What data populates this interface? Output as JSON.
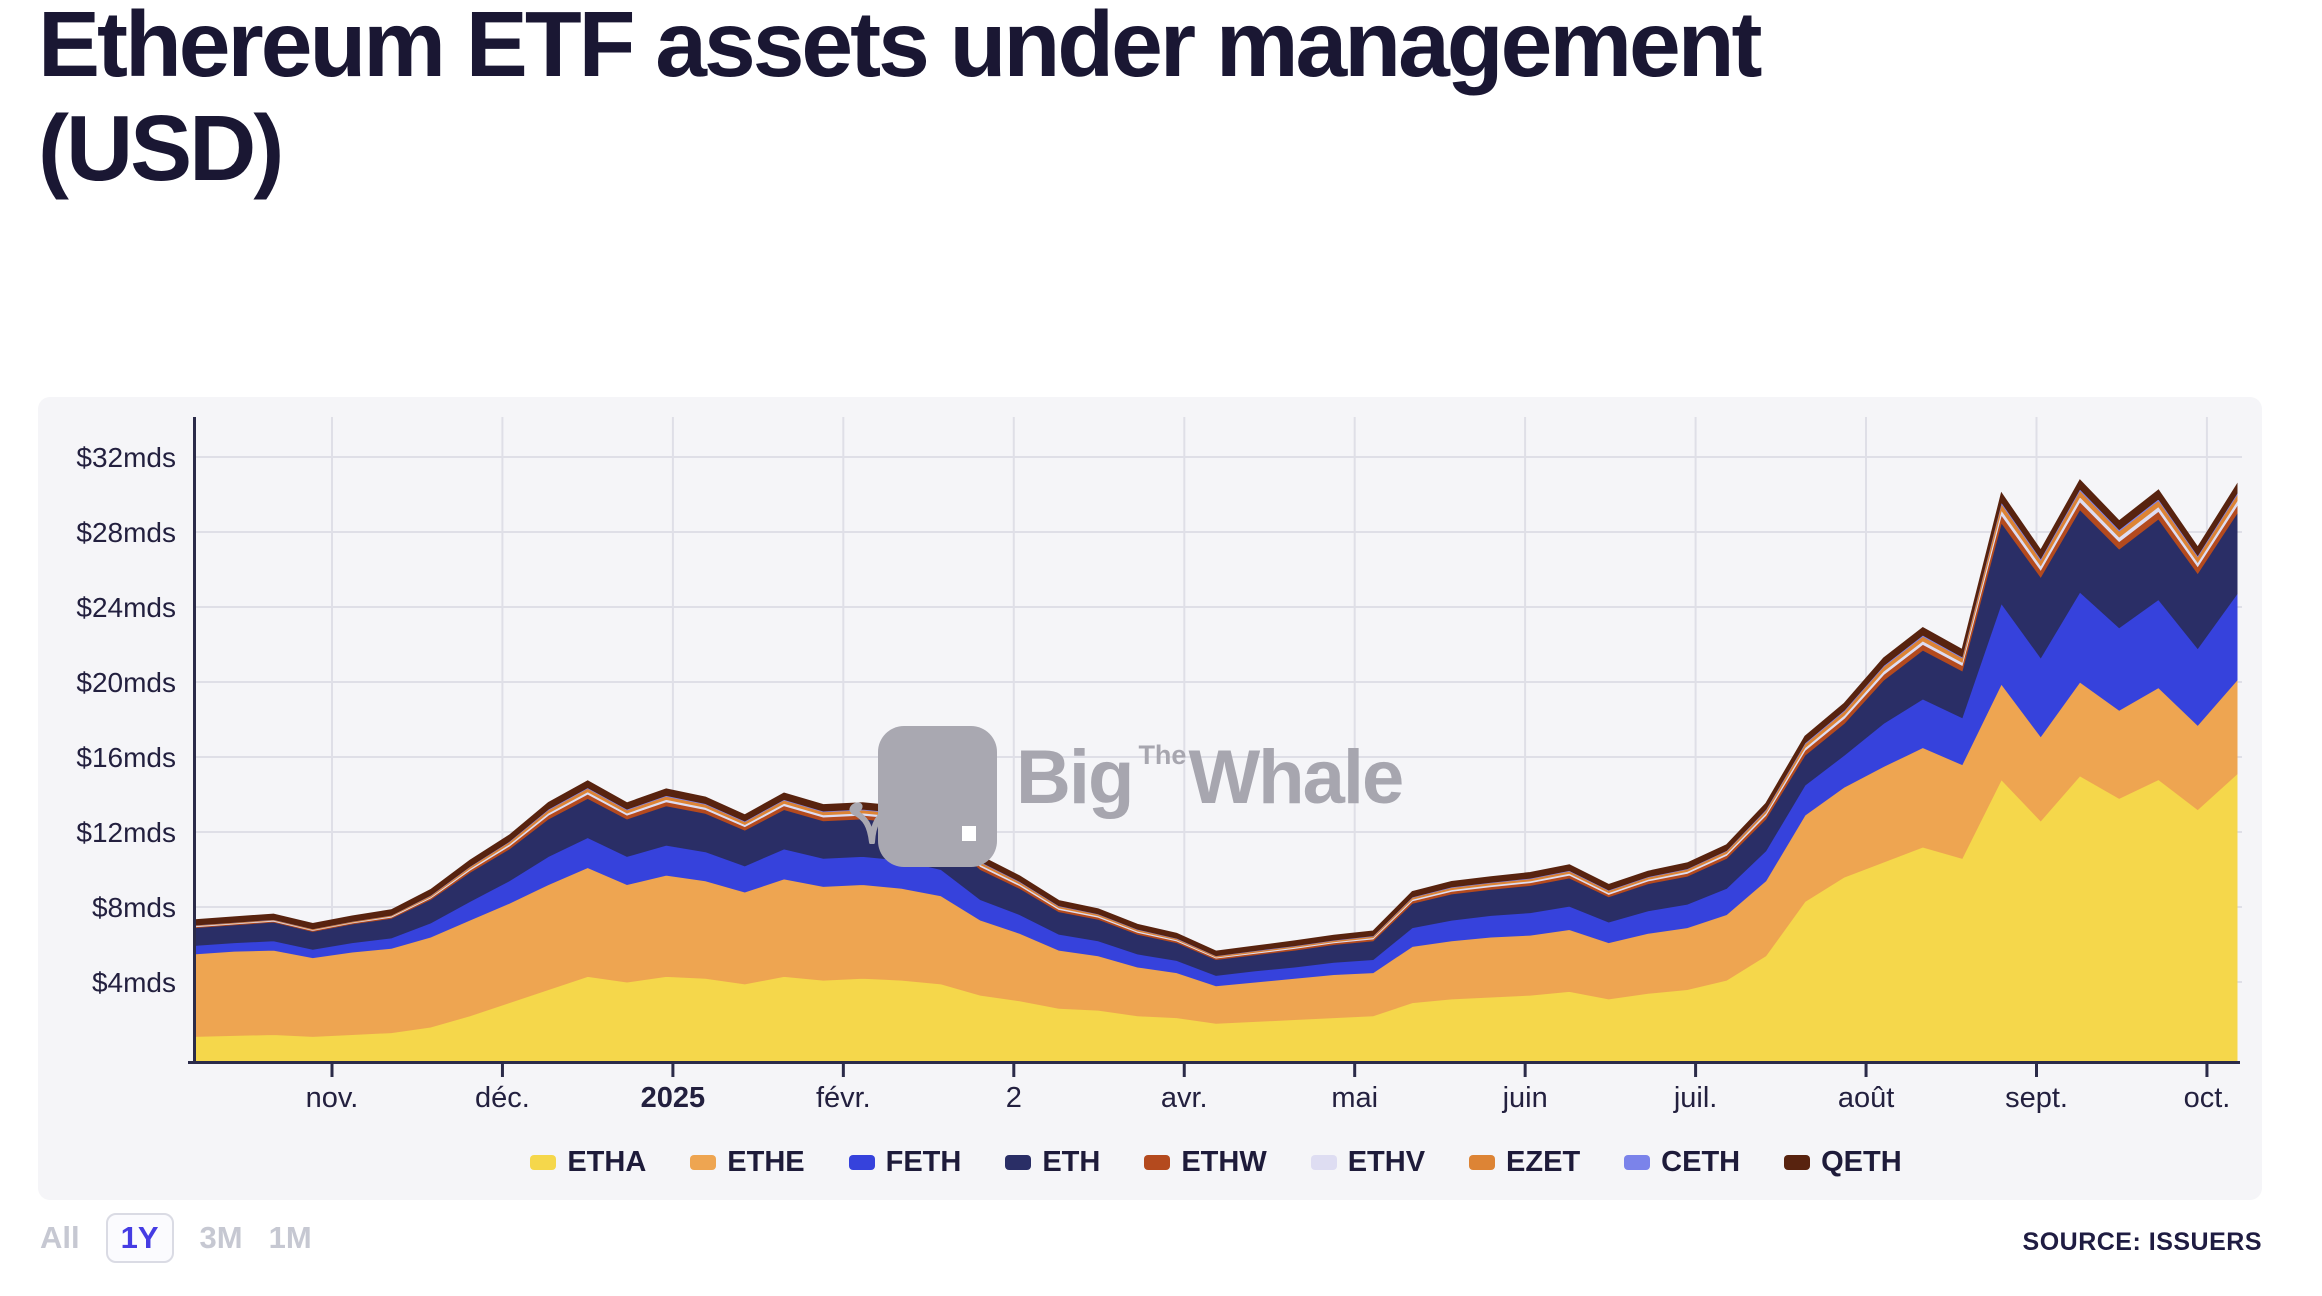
{
  "page": {
    "title_line1": "Ethereum ETF assets under management",
    "title_line2": "(USD)"
  },
  "watermark": {
    "the": "The",
    "big": "Big",
    "whale": "Whale",
    "color": "#A9A8B1"
  },
  "controls": {
    "options": [
      {
        "label": "All",
        "active": false
      },
      {
        "label": "1Y",
        "active": true
      },
      {
        "label": "3M",
        "active": false
      },
      {
        "label": "1M",
        "active": false
      }
    ]
  },
  "source": "SOURCE: ISSUERS",
  "colors": {
    "panel": "#F5F5F8",
    "gridline": "#DFDFE7",
    "axis": "#2B2B49",
    "label": "#23203F",
    "accent_blue": "#453CE3",
    "muted_gray": "#C6C8D2"
  },
  "chart_data": {
    "type": "area",
    "stacked": true,
    "title": "Ethereum ETF assets under management (USD)",
    "xlabel": "",
    "ylabel": "",
    "unit": "mds USD",
    "grid": true,
    "legend_position": "bottom",
    "ylim": [
      0,
      33.5
    ],
    "x": [
      "2024-10-08",
      "2024-10-15",
      "2024-10-22",
      "2024-10-29",
      "2024-11-05",
      "2024-11-12",
      "2024-11-19",
      "2024-11-26",
      "2024-12-03",
      "2024-12-10",
      "2024-12-17",
      "2024-12-24",
      "2024-12-31",
      "2025-01-07",
      "2025-01-14",
      "2025-01-21",
      "2025-01-28",
      "2025-02-04",
      "2025-02-11",
      "2025-02-18",
      "2025-02-25",
      "2025-03-04",
      "2025-03-11",
      "2025-03-18",
      "2025-03-25",
      "2025-04-01",
      "2025-04-08",
      "2025-04-15",
      "2025-04-22",
      "2025-04-29",
      "2025-05-06",
      "2025-05-13",
      "2025-05-20",
      "2025-05-27",
      "2025-06-03",
      "2025-06-10",
      "2025-06-17",
      "2025-06-24",
      "2025-07-01",
      "2025-07-08",
      "2025-07-15",
      "2025-07-22",
      "2025-07-29",
      "2025-08-05",
      "2025-08-12",
      "2025-08-19",
      "2025-08-26",
      "2025-09-02",
      "2025-09-09",
      "2025-09-16",
      "2025-09-23",
      "2025-09-30",
      "2025-10-07"
    ],
    "x_ticks": [
      {
        "label": "nov.",
        "bold": false
      },
      {
        "label": "déc.",
        "bold": false
      },
      {
        "label": "2025",
        "bold": true
      },
      {
        "label": "févr.",
        "bold": false
      },
      {
        "label": "2",
        "bold": false
      },
      {
        "label": "avr.",
        "bold": false
      },
      {
        "label": "mai",
        "bold": false
      },
      {
        "label": "juin",
        "bold": false
      },
      {
        "label": "juil.",
        "bold": false
      },
      {
        "label": "août",
        "bold": false
      },
      {
        "label": "sept.",
        "bold": false
      },
      {
        "label": "oct.",
        "bold": false
      }
    ],
    "y_ticks": [
      {
        "label": "$4mds",
        "value": 4
      },
      {
        "label": "$8mds",
        "value": 8
      },
      {
        "label": "$12mds",
        "value": 12
      },
      {
        "label": "$16mds",
        "value": 16
      },
      {
        "label": "$20mds",
        "value": 20
      },
      {
        "label": "$24mds",
        "value": 24
      },
      {
        "label": "$28mds",
        "value": 28
      },
      {
        "label": "$32mds",
        "value": 32
      }
    ],
    "series": [
      {
        "name": "ETHA",
        "color": "#F5D74B",
        "values": [
          1.1,
          1.15,
          1.2,
          1.1,
          1.2,
          1.3,
          1.6,
          2.2,
          2.9,
          3.6,
          4.3,
          4.0,
          4.3,
          4.2,
          3.9,
          4.3,
          4.1,
          4.2,
          4.1,
          3.9,
          3.3,
          3.0,
          2.6,
          2.5,
          2.2,
          2.1,
          1.8,
          1.9,
          2.0,
          2.1,
          2.2,
          2.9,
          3.1,
          3.2,
          3.3,
          3.5,
          3.1,
          3.4,
          3.6,
          4.1,
          5.4,
          8.3,
          9.6,
          10.4,
          11.2,
          10.6,
          14.8,
          12.6,
          15.0,
          13.8,
          14.8,
          13.2,
          15.1
        ]
      },
      {
        "name": "ETHE",
        "color": "#EEA551",
        "values": [
          4.4,
          4.5,
          4.5,
          4.2,
          4.4,
          4.5,
          4.8,
          5.1,
          5.3,
          5.6,
          5.8,
          5.2,
          5.4,
          5.2,
          4.9,
          5.2,
          5.0,
          5.0,
          4.9,
          4.7,
          4.0,
          3.6,
          3.1,
          2.9,
          2.6,
          2.4,
          2.0,
          2.1,
          2.2,
          2.3,
          2.3,
          3.0,
          3.1,
          3.2,
          3.2,
          3.3,
          3.0,
          3.2,
          3.3,
          3.5,
          4.0,
          4.6,
          4.8,
          5.1,
          5.3,
          5.0,
          5.1,
          4.5,
          5.0,
          4.7,
          4.9,
          4.5,
          5.0
        ]
      },
      {
        "name": "FETH",
        "color": "#3642DC",
        "values": [
          0.45,
          0.45,
          0.5,
          0.45,
          0.5,
          0.55,
          0.75,
          1.0,
          1.2,
          1.5,
          1.6,
          1.5,
          1.6,
          1.55,
          1.4,
          1.6,
          1.5,
          1.5,
          1.5,
          1.4,
          1.1,
          1.0,
          0.85,
          0.8,
          0.7,
          0.65,
          0.55,
          0.6,
          0.6,
          0.65,
          0.7,
          1.0,
          1.1,
          1.15,
          1.2,
          1.25,
          1.1,
          1.2,
          1.25,
          1.4,
          1.6,
          1.6,
          1.7,
          2.3,
          2.6,
          2.5,
          4.3,
          4.2,
          4.8,
          4.4,
          4.7,
          4.1,
          4.6
        ]
      },
      {
        "name": "ETH",
        "color": "#2A2E66",
        "values": [
          0.95,
          0.95,
          1.0,
          0.95,
          1.0,
          1.05,
          1.25,
          1.55,
          1.7,
          2.0,
          2.1,
          2.0,
          2.1,
          2.05,
          1.9,
          2.1,
          2.0,
          2.0,
          2.0,
          1.9,
          1.6,
          1.4,
          1.2,
          1.15,
          1.05,
          0.95,
          0.85,
          0.85,
          0.9,
          0.95,
          1.0,
          1.3,
          1.4,
          1.4,
          1.45,
          1.5,
          1.35,
          1.45,
          1.5,
          1.6,
          1.7,
          1.6,
          1.7,
          2.3,
          2.6,
          2.5,
          4.3,
          4.3,
          4.4,
          4.2,
          4.3,
          4.0,
          4.3
        ]
      },
      {
        "name": "ETHW",
        "color": "#B44A1E",
        "values": [
          0.05,
          0.05,
          0.05,
          0.05,
          0.05,
          0.06,
          0.08,
          0.12,
          0.15,
          0.2,
          0.22,
          0.2,
          0.21,
          0.2,
          0.19,
          0.21,
          0.2,
          0.2,
          0.2,
          0.19,
          0.16,
          0.14,
          0.12,
          0.11,
          0.1,
          0.09,
          0.08,
          0.08,
          0.09,
          0.09,
          0.1,
          0.13,
          0.14,
          0.14,
          0.15,
          0.15,
          0.13,
          0.14,
          0.15,
          0.16,
          0.19,
          0.25,
          0.27,
          0.3,
          0.31,
          0.29,
          0.42,
          0.38,
          0.42,
          0.4,
          0.41,
          0.37,
          0.41
        ]
      },
      {
        "name": "ETHV",
        "color": "#DEDDF2",
        "values": [
          0.04,
          0.04,
          0.04,
          0.04,
          0.04,
          0.05,
          0.06,
          0.08,
          0.1,
          0.12,
          0.13,
          0.12,
          0.13,
          0.12,
          0.11,
          0.12,
          0.12,
          0.12,
          0.12,
          0.11,
          0.1,
          0.09,
          0.08,
          0.07,
          0.07,
          0.06,
          0.05,
          0.06,
          0.06,
          0.06,
          0.07,
          0.08,
          0.09,
          0.09,
          0.09,
          0.1,
          0.09,
          0.09,
          0.1,
          0.1,
          0.12,
          0.15,
          0.16,
          0.18,
          0.18,
          0.17,
          0.26,
          0.23,
          0.26,
          0.24,
          0.25,
          0.22,
          0.25
        ]
      },
      {
        "name": "EZET",
        "color": "#DD8435",
        "values": [
          0.04,
          0.04,
          0.04,
          0.04,
          0.04,
          0.05,
          0.07,
          0.1,
          0.12,
          0.16,
          0.18,
          0.16,
          0.17,
          0.16,
          0.15,
          0.17,
          0.16,
          0.16,
          0.16,
          0.15,
          0.13,
          0.11,
          0.1,
          0.09,
          0.08,
          0.07,
          0.06,
          0.07,
          0.07,
          0.07,
          0.08,
          0.1,
          0.11,
          0.11,
          0.12,
          0.12,
          0.11,
          0.11,
          0.12,
          0.13,
          0.15,
          0.2,
          0.22,
          0.24,
          0.25,
          0.23,
          0.34,
          0.3,
          0.34,
          0.32,
          0.33,
          0.3,
          0.33
        ]
      },
      {
        "name": "CETH",
        "color": "#7B83EA",
        "values": [
          0.01,
          0.01,
          0.01,
          0.01,
          0.01,
          0.01,
          0.02,
          0.02,
          0.03,
          0.04,
          0.04,
          0.04,
          0.04,
          0.04,
          0.04,
          0.04,
          0.04,
          0.04,
          0.04,
          0.04,
          0.03,
          0.03,
          0.02,
          0.02,
          0.02,
          0.02,
          0.02,
          0.02,
          0.02,
          0.02,
          0.02,
          0.03,
          0.03,
          0.03,
          0.03,
          0.03,
          0.03,
          0.03,
          0.03,
          0.03,
          0.04,
          0.05,
          0.05,
          0.06,
          0.06,
          0.06,
          0.08,
          0.08,
          0.08,
          0.08,
          0.08,
          0.07,
          0.08
        ]
      },
      {
        "name": "QETH",
        "color": "#58230F",
        "values": [
          0.28,
          0.28,
          0.28,
          0.28,
          0.28,
          0.28,
          0.3,
          0.32,
          0.33,
          0.35,
          0.36,
          0.34,
          0.35,
          0.34,
          0.33,
          0.34,
          0.34,
          0.34,
          0.34,
          0.33,
          0.3,
          0.29,
          0.27,
          0.26,
          0.25,
          0.25,
          0.24,
          0.24,
          0.25,
          0.25,
          0.25,
          0.28,
          0.29,
          0.29,
          0.3,
          0.3,
          0.29,
          0.29,
          0.3,
          0.3,
          0.32,
          0.36,
          0.37,
          0.4,
          0.4,
          0.39,
          0.48,
          0.45,
          0.48,
          0.46,
          0.47,
          0.44,
          0.47
        ]
      }
    ]
  }
}
